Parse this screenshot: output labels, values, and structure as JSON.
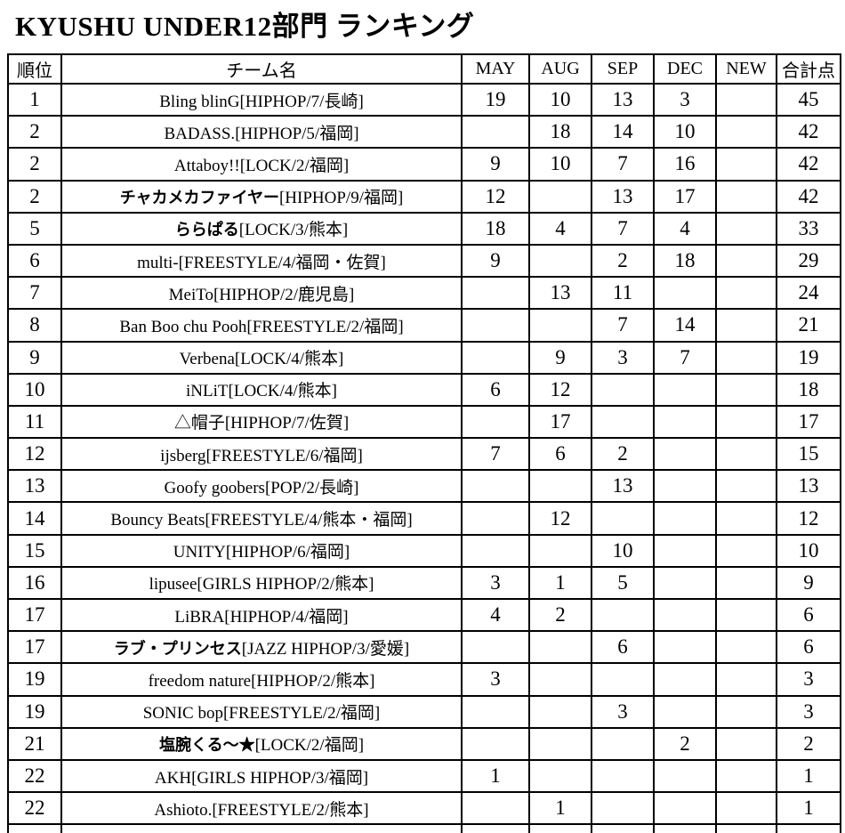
{
  "title": "KYUSHU UNDER12部門 ランキング",
  "table": {
    "headers": {
      "rank": "順位",
      "team": "チーム名",
      "may": "MAY",
      "aug": "AUG",
      "sep": "SEP",
      "dec": "DEC",
      "new": "NEW",
      "total": "合計点"
    },
    "rows": [
      {
        "rank": "1",
        "team_name": "Bling blinG",
        "team_info": "[HIPHOP/7/長崎]",
        "bold": false,
        "may": "19",
        "aug": "10",
        "sep": "13",
        "dec": "3",
        "new": "",
        "total": "45"
      },
      {
        "rank": "2",
        "team_name": "BADASS.",
        "team_info": "[HIPHOP/5/福岡]",
        "bold": false,
        "may": "",
        "aug": "18",
        "sep": "14",
        "dec": "10",
        "new": "",
        "total": "42"
      },
      {
        "rank": "2",
        "team_name": "Attaboy!!",
        "team_info": "[LOCK/2/福岡]",
        "bold": false,
        "may": "9",
        "aug": "10",
        "sep": "7",
        "dec": "16",
        "new": "",
        "total": "42"
      },
      {
        "rank": "2",
        "team_name": "チャカメカファイヤー",
        "team_info": "[HIPHOP/9/福岡]",
        "bold": true,
        "may": "12",
        "aug": "",
        "sep": "13",
        "dec": "17",
        "new": "",
        "total": "42"
      },
      {
        "rank": "5",
        "team_name": "ららぱる",
        "team_info": "[LOCK/3/熊本]",
        "bold": true,
        "may": "18",
        "aug": "4",
        "sep": "7",
        "dec": "4",
        "new": "",
        "total": "33"
      },
      {
        "rank": "6",
        "team_name": "multi-",
        "team_info": "[FREESTYLE/4/福岡・佐賀]",
        "bold": false,
        "may": "9",
        "aug": "",
        "sep": "2",
        "dec": "18",
        "new": "",
        "total": "29"
      },
      {
        "rank": "7",
        "team_name": "MeiTo",
        "team_info": "[HIPHOP/2/鹿児島]",
        "bold": false,
        "may": "",
        "aug": "13",
        "sep": "11",
        "dec": "",
        "new": "",
        "total": "24"
      },
      {
        "rank": "8",
        "team_name": "Ban Boo chu Pooh",
        "team_info": "[FREESTYLE/2/福岡]",
        "bold": false,
        "may": "",
        "aug": "",
        "sep": "7",
        "dec": "14",
        "new": "",
        "total": "21"
      },
      {
        "rank": "9",
        "team_name": "Verbena",
        "team_info": "[LOCK/4/熊本]",
        "bold": false,
        "may": "",
        "aug": "9",
        "sep": "3",
        "dec": "7",
        "new": "",
        "total": "19"
      },
      {
        "rank": "10",
        "team_name": "iNLiT",
        "team_info": "[LOCK/4/熊本]",
        "bold": false,
        "may": "6",
        "aug": "12",
        "sep": "",
        "dec": "",
        "new": "",
        "total": "18"
      },
      {
        "rank": "11",
        "team_name": "△帽子",
        "team_info": "[HIPHOP/7/佐賀]",
        "bold": false,
        "may": "",
        "aug": "17",
        "sep": "",
        "dec": "",
        "new": "",
        "total": "17"
      },
      {
        "rank": "12",
        "team_name": "ijsberg",
        "team_info": "[FREESTYLE/6/福岡]",
        "bold": false,
        "may": "7",
        "aug": "6",
        "sep": "2",
        "dec": "",
        "new": "",
        "total": "15"
      },
      {
        "rank": "13",
        "team_name": "Goofy goobers",
        "team_info": "[POP/2/長崎]",
        "bold": false,
        "may": "",
        "aug": "",
        "sep": "13",
        "dec": "",
        "new": "",
        "total": "13"
      },
      {
        "rank": "14",
        "team_name": "Bouncy Beats",
        "team_info": "[FREESTYLE/4/熊本・福岡]",
        "bold": false,
        "may": "",
        "aug": "12",
        "sep": "",
        "dec": "",
        "new": "",
        "total": "12"
      },
      {
        "rank": "15",
        "team_name": "UNITY",
        "team_info": "[HIPHOP/6/福岡]",
        "bold": false,
        "may": "",
        "aug": "",
        "sep": "10",
        "dec": "",
        "new": "",
        "total": "10"
      },
      {
        "rank": "16",
        "team_name": "lipusee",
        "team_info": "[GIRLS HIPHOP/2/熊本]",
        "bold": false,
        "may": "3",
        "aug": "1",
        "sep": "5",
        "dec": "",
        "new": "",
        "total": "9"
      },
      {
        "rank": "17",
        "team_name": "LiBRA",
        "team_info": "[HIPHOP/4/福岡]",
        "bold": false,
        "may": "4",
        "aug": "2",
        "sep": "",
        "dec": "",
        "new": "",
        "total": "6"
      },
      {
        "rank": "17",
        "team_name": "ラブ・プリンセス",
        "team_info": "[JAZZ HIPHOP/3/愛媛]",
        "bold": true,
        "may": "",
        "aug": "",
        "sep": "6",
        "dec": "",
        "new": "",
        "total": "6"
      },
      {
        "rank": "19",
        "team_name": "freedom nature",
        "team_info": "[HIPHOP/2/熊本]",
        "bold": false,
        "may": "3",
        "aug": "",
        "sep": "",
        "dec": "",
        "new": "",
        "total": "3"
      },
      {
        "rank": "19",
        "team_name": "SONIC bop",
        "team_info": "[FREESTYLE/2/福岡]",
        "bold": false,
        "may": "",
        "aug": "",
        "sep": "3",
        "dec": "",
        "new": "",
        "total": "3"
      },
      {
        "rank": "21",
        "team_name": "塩腕くる～★",
        "team_info": "[LOCK/2/福岡]",
        "bold": true,
        "may": "",
        "aug": "",
        "sep": "",
        "dec": "2",
        "new": "",
        "total": "2"
      },
      {
        "rank": "22",
        "team_name": "AKH",
        "team_info": "[GIRLS HIPHOP/3/福岡]",
        "bold": false,
        "may": "1",
        "aug": "",
        "sep": "",
        "dec": "",
        "new": "",
        "total": "1"
      },
      {
        "rank": "22",
        "team_name": "Ashioto.",
        "team_info": "[FREESTYLE/2/熊本]",
        "bold": false,
        "may": "",
        "aug": "1",
        "sep": "",
        "dec": "",
        "new": "",
        "total": "1"
      }
    ]
  }
}
